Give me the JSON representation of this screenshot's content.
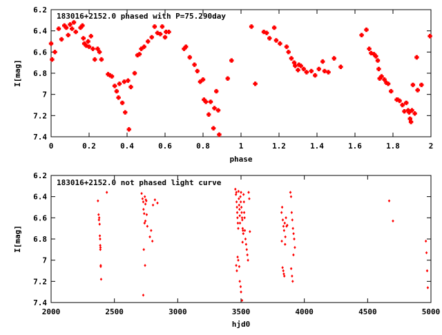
{
  "colors": {
    "points": "#ff0000",
    "frame": "#000000",
    "background": "#ffffff"
  },
  "chart_data": [
    {
      "type": "scatter",
      "title": "183016+2152.0 phased with P=75.290day",
      "xlabel": "phase",
      "ylabel": "I[mag]",
      "xlim": [
        0,
        2
      ],
      "ylim": [
        7.4,
        6.2
      ],
      "y_inverted": true,
      "grid": false,
      "marker": "large-cross",
      "xticks": [
        "0",
        "0.2",
        "0.4",
        "0.6",
        "0.8",
        "1",
        "1.2",
        "1.4",
        "1.6",
        "1.8",
        "2"
      ],
      "yticks": [
        "6.2",
        "6.4",
        "6.6",
        "6.8",
        "7",
        "7.2",
        "7.4"
      ],
      "xtick_values": [
        0,
        0.2,
        0.4,
        0.6,
        0.8,
        1.0,
        1.2,
        1.4,
        1.6,
        1.8,
        2.0
      ],
      "ytick_values": [
        6.2,
        6.4,
        6.6,
        6.8,
        7.0,
        7.2,
        7.4
      ],
      "x": [
        0.0,
        0.005,
        0.02,
        0.04,
        0.055,
        0.07,
        0.08,
        0.09,
        0.1,
        0.11,
        0.12,
        0.13,
        0.155,
        0.165,
        0.17,
        0.175,
        0.185,
        0.195,
        0.2,
        0.21,
        0.22,
        0.23,
        0.245,
        0.255,
        0.265,
        0.3,
        0.31,
        0.32,
        0.335,
        0.345,
        0.355,
        0.36,
        0.375,
        0.385,
        0.39,
        0.405,
        0.41,
        0.42,
        0.44,
        0.455,
        0.465,
        0.475,
        0.49,
        0.51,
        0.53,
        0.545,
        0.56,
        0.575,
        0.585,
        0.6,
        0.605,
        0.62,
        0.7,
        0.71,
        0.73,
        0.755,
        0.77,
        0.785,
        0.8,
        0.805,
        0.815,
        0.83,
        0.84,
        0.855,
        0.86,
        0.87,
        0.88,
        0.885,
        0.93,
        0.95,
        1.055,
        1.075,
        1.12,
        1.135,
        1.15,
        1.175,
        1.185,
        1.205,
        1.24,
        1.25,
        1.265,
        1.28,
        1.285,
        1.3,
        1.305,
        1.315,
        1.33,
        1.345,
        1.37,
        1.39,
        1.41,
        1.43,
        1.44,
        1.46,
        1.49,
        1.525,
        1.635,
        1.66,
        1.675,
        1.685,
        1.7,
        1.71,
        1.72,
        1.725,
        1.73,
        1.74,
        1.755,
        1.765,
        1.775,
        1.79,
        1.82,
        1.825,
        1.835,
        1.85,
        1.86,
        1.87,
        1.88,
        1.885,
        1.89,
        1.895,
        1.9,
        1.905,
        1.915,
        1.925,
        1.93,
        1.95,
        1.995
      ],
      "y": [
        6.52,
        6.67,
        6.6,
        6.38,
        6.48,
        6.35,
        6.37,
        6.44,
        6.34,
        6.38,
        6.32,
        6.41,
        6.37,
        6.35,
        6.47,
        6.52,
        6.54,
        6.5,
        6.55,
        6.45,
        6.57,
        6.67,
        6.57,
        6.6,
        6.67,
        6.81,
        6.82,
        6.83,
        6.92,
        6.97,
        7.03,
        6.9,
        7.08,
        6.88,
        7.17,
        6.87,
        7.33,
        6.93,
        6.8,
        6.63,
        6.62,
        6.57,
        6.55,
        6.5,
        6.46,
        6.36,
        6.42,
        6.43,
        6.36,
        6.46,
        6.41,
        6.41,
        6.57,
        6.55,
        6.65,
        6.72,
        6.78,
        6.88,
        6.86,
        7.05,
        7.07,
        7.19,
        7.07,
        7.32,
        7.13,
        6.97,
        7.15,
        7.38,
        6.85,
        6.68,
        6.36,
        6.9,
        6.41,
        6.42,
        6.47,
        6.37,
        6.49,
        6.52,
        6.55,
        6.6,
        6.66,
        6.7,
        6.73,
        6.77,
        6.72,
        6.73,
        6.76,
        6.79,
        6.78,
        6.82,
        6.76,
        6.69,
        6.78,
        6.79,
        6.66,
        6.74,
        6.44,
        6.39,
        6.57,
        6.61,
        6.62,
        6.64,
        6.68,
        6.76,
        6.85,
        6.83,
        6.86,
        6.89,
        6.9,
        6.97,
        7.05,
        7.05,
        7.06,
        7.1,
        7.16,
        7.08,
        7.15,
        7.17,
        7.23,
        7.26,
        7.15,
        6.91,
        7.18,
        6.65,
        6.96,
        6.91,
        6.45
      ]
    },
    {
      "type": "scatter",
      "title": "183016+2152.0 not phased light curve",
      "xlabel": "hjd0",
      "ylabel": "I[mag]",
      "xlim": [
        2000,
        5000
      ],
      "ylim": [
        7.4,
        6.2
      ],
      "y_inverted": true,
      "grid": false,
      "marker": "small-diamond",
      "xticks": [
        "2000",
        "2500",
        "3000",
        "3500",
        "4000",
        "4500",
        "5000"
      ],
      "yticks": [
        "6.2",
        "6.4",
        "6.6",
        "6.8",
        "7",
        "7.2",
        "7.4"
      ],
      "xtick_values": [
        2000,
        2500,
        3000,
        3500,
        4000,
        4500,
        5000
      ],
      "ytick_values": [
        6.2,
        6.4,
        6.6,
        6.8,
        7.0,
        7.2,
        7.4
      ],
      "x": [
        2370,
        2375,
        2378,
        2380,
        2383,
        2385,
        2388,
        2390,
        2392,
        2395,
        2387,
        2389,
        2392,
        2440,
        2715,
        2722,
        2728,
        2730,
        2735,
        2738,
        2740,
        2745,
        2748,
        2752,
        2755,
        2760,
        2745,
        2732,
        2728,
        2742,
        2780,
        2790,
        2800,
        2805,
        2820,
        2840,
        3455,
        3460,
        3463,
        3465,
        3468,
        3470,
        3472,
        3475,
        3478,
        3480,
        3483,
        3485,
        3488,
        3490,
        3492,
        3495,
        3498,
        3500,
        3503,
        3505,
        3508,
        3510,
        3513,
        3515,
        3518,
        3520,
        3523,
        3525,
        3528,
        3530,
        3535,
        3540,
        3545,
        3550,
        3555,
        3560,
        3565,
        3570,
        3462,
        3467,
        3473,
        3478,
        3486,
        3490,
        3497,
        3500,
        3508,
        3512,
        3820,
        3825,
        3830,
        3835,
        3840,
        3845,
        3850,
        3855,
        3860,
        3865,
        3822,
        3828,
        3834,
        3838,
        3842,
        3848,
        3890,
        3895,
        3900,
        3905,
        3910,
        3915,
        3920,
        3925,
        3896,
        3903,
        3908,
        3914,
        4670,
        4700,
        4960,
        4965,
        4970,
        4975
      ],
      "y": [
        6.44,
        6.57,
        6.62,
        6.6,
        6.66,
        6.77,
        6.86,
        6.88,
        7.05,
        7.18,
        6.8,
        6.9,
        7.06,
        6.36,
        6.37,
        6.42,
        6.45,
        6.52,
        6.56,
        6.65,
        6.4,
        6.47,
        6.43,
        6.44,
        6.57,
        6.68,
        6.63,
        6.9,
        7.33,
        7.05,
        6.78,
        6.72,
        6.82,
        6.48,
        6.43,
        6.46,
        6.33,
        6.38,
        6.36,
        6.45,
        6.5,
        6.55,
        6.6,
        6.65,
        6.7,
        6.35,
        6.42,
        6.48,
        6.52,
        6.58,
        6.65,
        6.4,
        6.45,
        6.36,
        6.5,
        6.55,
        6.6,
        6.62,
        6.7,
        6.72,
        6.75,
        6.38,
        6.45,
        6.55,
        6.6,
        6.72,
        6.8,
        6.85,
        6.9,
        6.95,
        7.0,
        6.36,
        6.42,
        6.73,
        7.05,
        7.1,
        6.97,
        7.0,
        7.06,
        7.2,
        7.25,
        7.3,
        7.38,
        6.83,
        6.55,
        6.5,
        6.62,
        6.68,
        6.72,
        6.65,
        6.78,
        6.6,
        6.68,
        6.67,
        6.82,
        7.07,
        7.1,
        7.13,
        7.15,
        6.85,
        6.36,
        6.4,
        6.55,
        6.62,
        6.7,
        6.75,
        6.8,
        6.88,
        7.08,
        7.15,
        7.2,
        6.95,
        6.44,
        6.63,
        6.82,
        6.93,
        7.1,
        7.26
      ]
    }
  ]
}
